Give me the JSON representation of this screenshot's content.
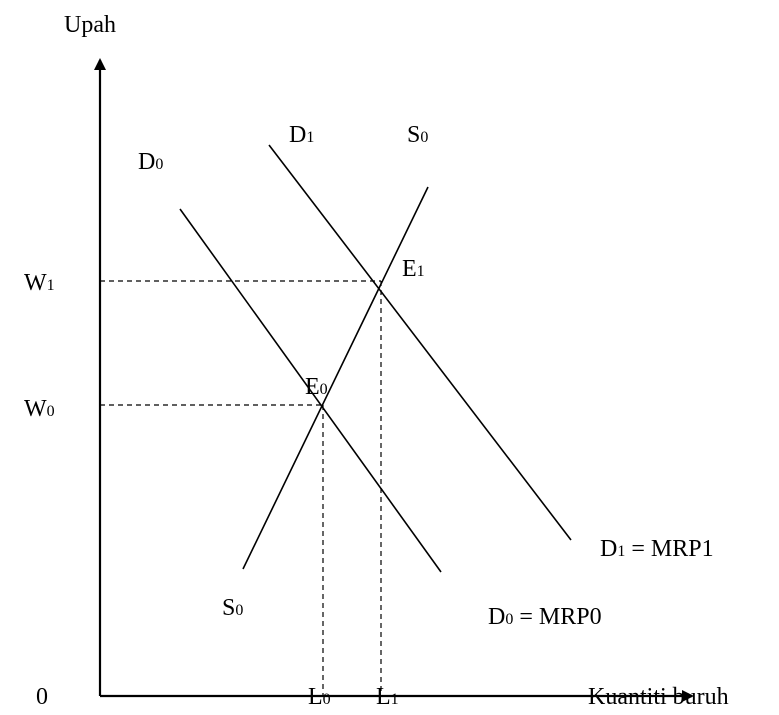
{
  "axes": {
    "y_label": "Upah",
    "x_label": "Kuantiti buruh",
    "origin_label": "0"
  },
  "ticks": {
    "w1": {
      "main": "W",
      "sub": "1"
    },
    "w0": {
      "main": "W",
      "sub": "0"
    },
    "l0": {
      "main": "L",
      "sub": "0"
    },
    "l1": {
      "main": "L",
      "sub": "1"
    }
  },
  "curves": {
    "d0_top": {
      "main": "D",
      "sub": "0"
    },
    "d1_top": {
      "main": "D",
      "sub": "1"
    },
    "s0_top": {
      "main": "S",
      "sub": "0"
    },
    "s0_bottom": {
      "main": "S",
      "sub": "0"
    },
    "d1_end": {
      "main": "D",
      "sub": "1",
      "rest": " = MRP1"
    },
    "d0_end": {
      "main": "D",
      "sub": "0",
      "rest": " = MRP0"
    }
  },
  "points": {
    "e0": {
      "main": "E",
      "sub": "0"
    },
    "e1": {
      "main": "E",
      "sub": "1"
    }
  },
  "colors": {
    "ink": "#000000",
    "background": "#ffffff"
  }
}
